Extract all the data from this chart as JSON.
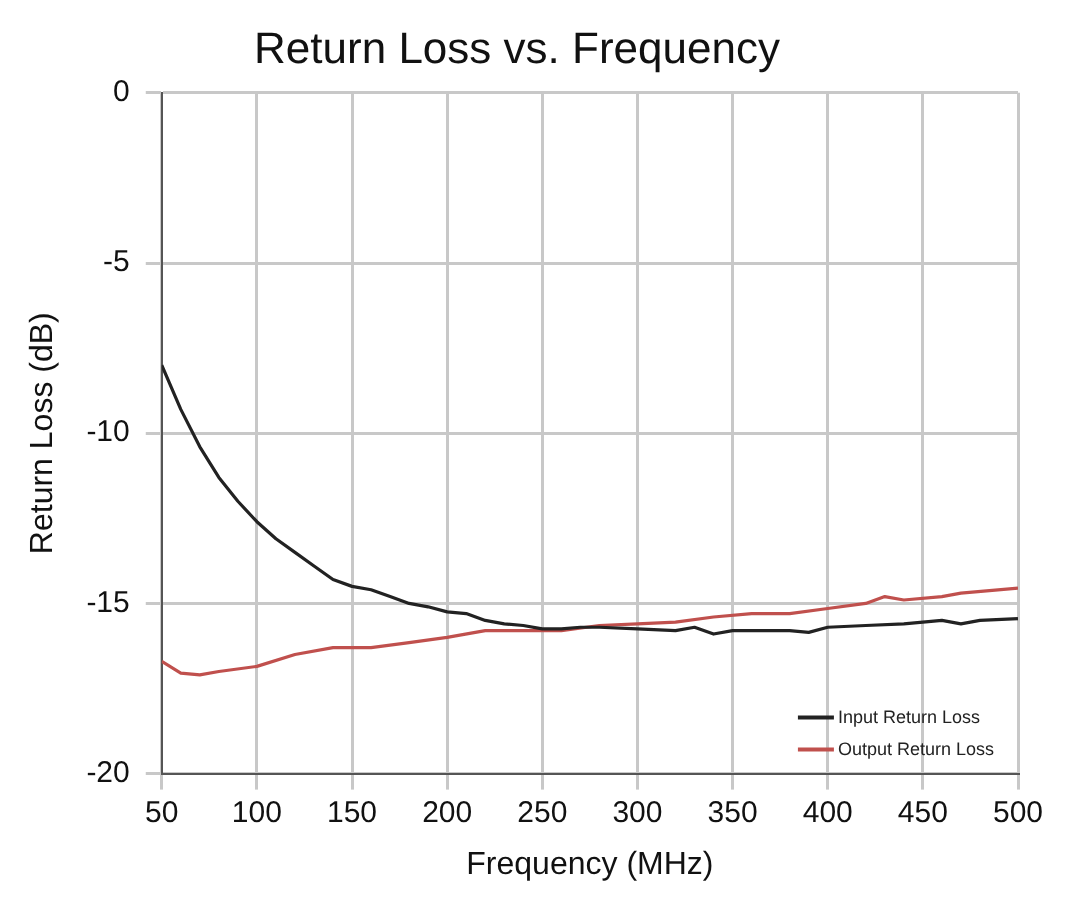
{
  "chart_data": {
    "type": "line",
    "title": "Return Loss vs. Frequency",
    "xlabel": "Frequency (MHz)",
    "ylabel": "Return Loss (dB)",
    "xlim": [
      50,
      500
    ],
    "xticks": [
      50,
      100,
      150,
      200,
      250,
      300,
      350,
      400,
      450,
      500
    ],
    "ylim": [
      -20,
      0
    ],
    "yticks": [
      -20,
      -15,
      -10,
      -5,
      0
    ],
    "grid": true,
    "legend": "bottom right",
    "marker": "none",
    "line_style": "solid",
    "series": [
      {
        "name": "Input Return Loss",
        "color": "#222222",
        "x": [
          50,
          60,
          70,
          80,
          90,
          100,
          110,
          120,
          130,
          140,
          150,
          160,
          170,
          180,
          190,
          200,
          210,
          220,
          230,
          240,
          250,
          260,
          270,
          280,
          300,
          320,
          330,
          340,
          350,
          380,
          390,
          400,
          420,
          440,
          460,
          470,
          480,
          500
        ],
        "values": [
          -8,
          -9.3,
          -10.4,
          -11.3,
          -12,
          -12.6,
          -13.1,
          -13.5,
          -13.9,
          -14.3,
          -14.5,
          -14.6,
          -14.8,
          -15,
          -15.1,
          -15.25,
          -15.3,
          -15.5,
          -15.6,
          -15.65,
          -15.75,
          -15.75,
          -15.7,
          -15.7,
          -15.75,
          -15.8,
          -15.7,
          -15.9,
          -15.8,
          -15.8,
          -15.85,
          -15.7,
          -15.65,
          -15.6,
          -15.5,
          -15.6,
          -15.5,
          -15.45
        ]
      },
      {
        "name": "Output Return Loss",
        "color": "#c0504d",
        "x": [
          50,
          60,
          70,
          80,
          100,
          120,
          140,
          160,
          180,
          200,
          220,
          240,
          260,
          280,
          300,
          320,
          340,
          360,
          380,
          400,
          420,
          430,
          440,
          460,
          470,
          500
        ],
        "values": [
          -16.7,
          -17.05,
          -17.1,
          -17,
          -16.85,
          -16.5,
          -16.3,
          -16.3,
          -16.15,
          -16,
          -15.8,
          -15.8,
          -15.8,
          -15.65,
          -15.6,
          -15.55,
          -15.4,
          -15.3,
          -15.3,
          -15.15,
          -15,
          -14.8,
          -14.9,
          -14.8,
          -14.7,
          -14.55
        ]
      }
    ]
  }
}
